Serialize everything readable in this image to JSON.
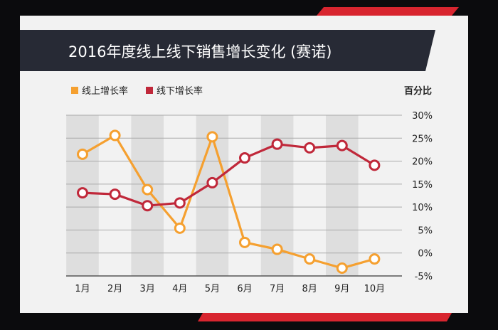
{
  "title": "2016年度线上线下销售增长变化 (赛诺)",
  "colors": {
    "background": "#0b0b0d",
    "card": "#f2f2f2",
    "banner": "#272a35",
    "accent_red": "#d8252f",
    "online": "#f5a030",
    "offline": "#c0283a",
    "stripe": "#dedede",
    "grid": "#aaaaaa"
  },
  "chart_data": {
    "type": "line",
    "title": "2016年度线上线下销售增长变化 (赛诺)",
    "y_unit_label": "百分比",
    "categories": [
      "1月",
      "2月",
      "3月",
      "4月",
      "5月",
      "6月",
      "7月",
      "8月",
      "9月",
      "10月"
    ],
    "y_ticks": [
      "30%",
      "25%",
      "20%",
      "15%",
      "10%",
      "5%",
      "0%",
      "-5%"
    ],
    "ylim": [
      -5,
      30
    ],
    "grid": true,
    "legend_position": "top-left",
    "series": [
      {
        "name": "线上增长率",
        "values": [
          21.5,
          25.6,
          13.8,
          5.4,
          25.3,
          2.3,
          0.8,
          -1.3,
          -3.3,
          -1.3
        ]
      },
      {
        "name": "线下增长率",
        "values": [
          13.1,
          12.8,
          10.3,
          10.9,
          15.3,
          20.7,
          23.7,
          22.9,
          23.4,
          19.1
        ]
      }
    ]
  }
}
